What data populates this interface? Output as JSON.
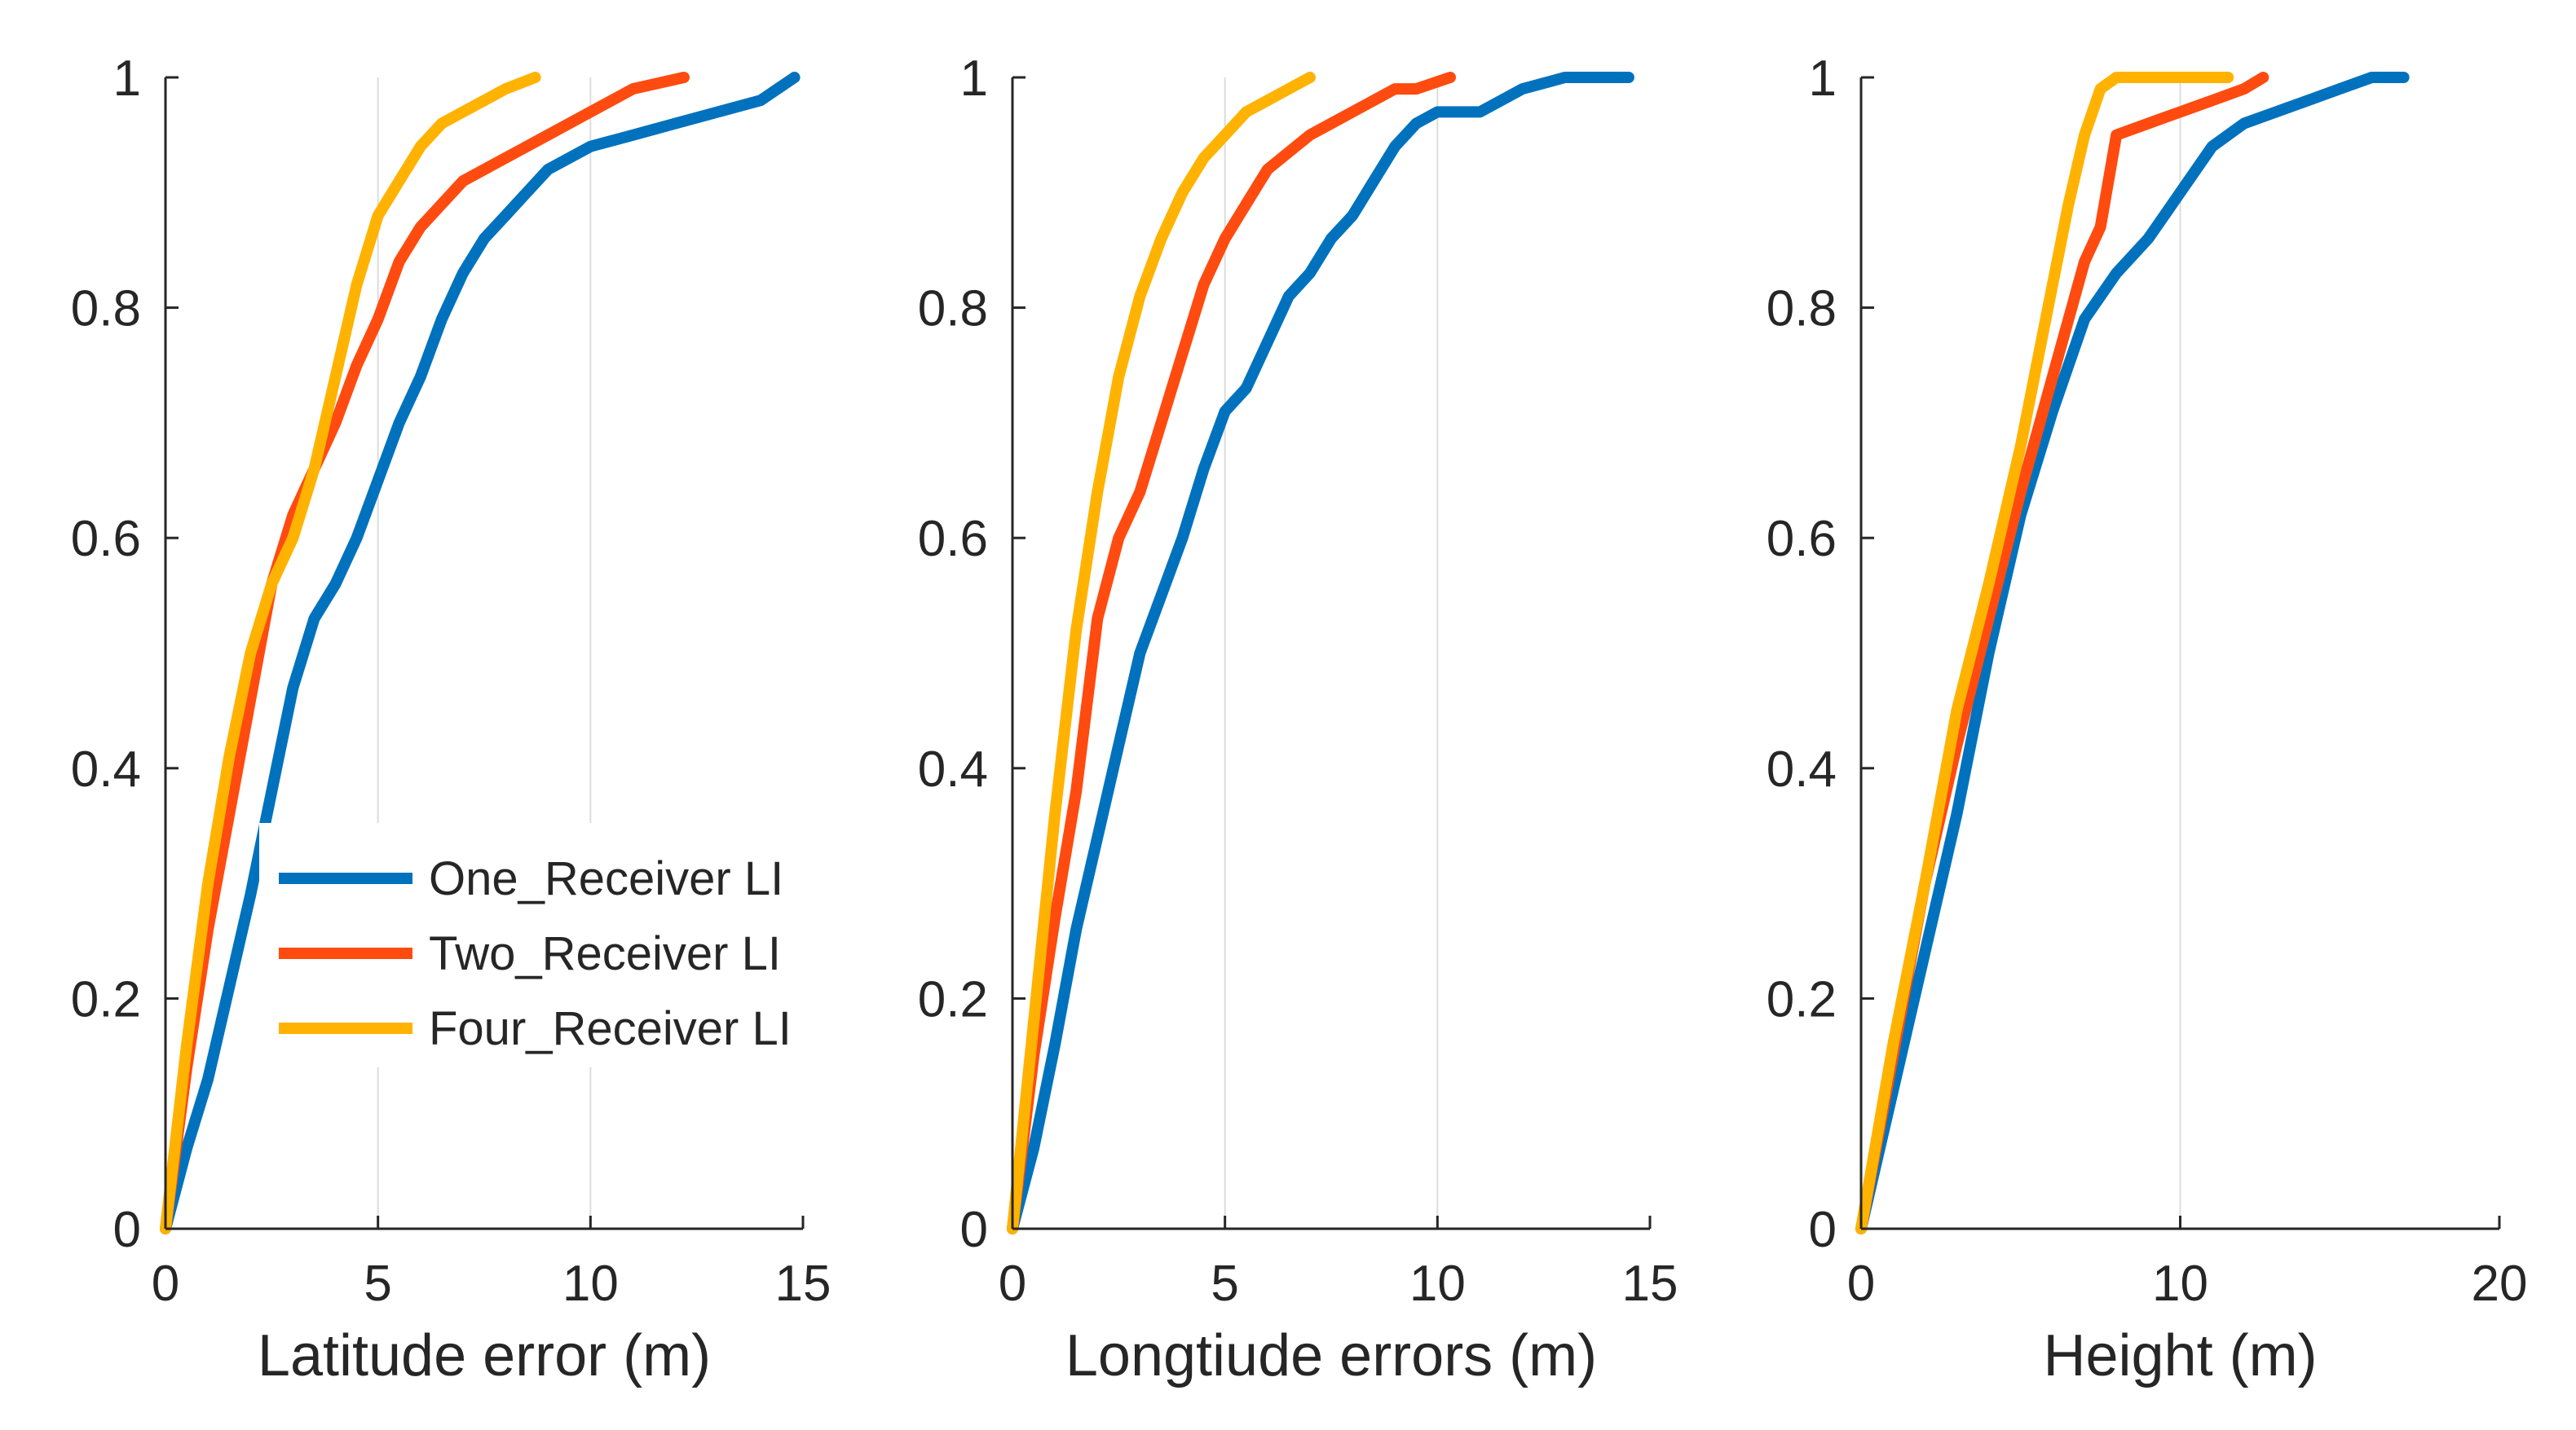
{
  "colors": {
    "one": "#0072BD",
    "two": "#FF4B0F",
    "four": "#FFB300"
  },
  "chart_data": [
    {
      "type": "line",
      "xlabel": "Latitude error (m)",
      "ylabel": "",
      "xlim": [
        0,
        15
      ],
      "ylim": [
        0,
        1
      ],
      "xticks": [
        "0",
        "5",
        "10",
        "15"
      ],
      "yticks": [
        "0",
        "0.2",
        "0.4",
        "0.6",
        "0.8",
        "1"
      ],
      "grid": "vertical",
      "legend": {
        "placement": "lower-right",
        "entries": [
          "One_Receiver LI",
          "Two_Receiver LI",
          "Four_Receiver LI"
        ]
      },
      "series": [
        {
          "name": "One_Receiver LI",
          "x": [
            0,
            0.5,
            1.0,
            1.5,
            2.0,
            2.5,
            3.0,
            3.5,
            4.0,
            4.5,
            5.0,
            5.5,
            6.0,
            6.5,
            7.0,
            7.5,
            8.0,
            8.5,
            9.0,
            10.0,
            11.0,
            12.0,
            13.0,
            14.0,
            14.8
          ],
          "y": [
            0,
            0.07,
            0.13,
            0.21,
            0.29,
            0.38,
            0.47,
            0.53,
            0.56,
            0.6,
            0.65,
            0.7,
            0.74,
            0.79,
            0.83,
            0.86,
            0.88,
            0.9,
            0.92,
            0.94,
            0.95,
            0.96,
            0.97,
            0.98,
            1.0
          ]
        },
        {
          "name": "Two_Receiver LI",
          "x": [
            0,
            0.5,
            1.0,
            1.5,
            2.0,
            2.5,
            3.0,
            3.5,
            4.0,
            4.5,
            5.0,
            5.5,
            6.0,
            7.0,
            8.0,
            9.0,
            10.0,
            11.0,
            12.2
          ],
          "y": [
            0,
            0.14,
            0.26,
            0.36,
            0.46,
            0.56,
            0.62,
            0.66,
            0.7,
            0.75,
            0.79,
            0.84,
            0.87,
            0.91,
            0.93,
            0.95,
            0.97,
            0.99,
            1.0
          ]
        },
        {
          "name": "Four_Receiver LI",
          "x": [
            0,
            0.5,
            1.0,
            1.5,
            2.0,
            2.5,
            3.0,
            3.5,
            4.0,
            4.5,
            5.0,
            5.5,
            6.0,
            6.5,
            7.0,
            7.5,
            8.0,
            8.7
          ],
          "y": [
            0,
            0.16,
            0.3,
            0.41,
            0.5,
            0.56,
            0.6,
            0.66,
            0.74,
            0.82,
            0.88,
            0.91,
            0.94,
            0.96,
            0.97,
            0.98,
            0.99,
            1.0
          ]
        }
      ]
    },
    {
      "type": "line",
      "xlabel": "Longtiude errors (m)",
      "ylabel": "",
      "xlim": [
        0,
        15
      ],
      "ylim": [
        0,
        1
      ],
      "xticks": [
        "0",
        "5",
        "10",
        "15"
      ],
      "yticks": [
        "0",
        "0.2",
        "0.4",
        "0.6",
        "0.8",
        "1"
      ],
      "grid": "vertical",
      "series": [
        {
          "name": "One_Receiver LI",
          "x": [
            0,
            0.5,
            1.0,
            1.5,
            2.0,
            2.5,
            3.0,
            3.5,
            4.0,
            4.5,
            5.0,
            5.5,
            6.0,
            6.5,
            7.0,
            7.5,
            8.0,
            8.5,
            9.0,
            9.5,
            10.0,
            11.0,
            12.0,
            13.0,
            14.5
          ],
          "y": [
            0,
            0.07,
            0.16,
            0.26,
            0.34,
            0.42,
            0.5,
            0.55,
            0.6,
            0.66,
            0.71,
            0.73,
            0.77,
            0.81,
            0.83,
            0.86,
            0.88,
            0.91,
            0.94,
            0.96,
            0.97,
            0.97,
            0.99,
            1.0,
            1.0
          ]
        },
        {
          "name": "Two_Receiver LI",
          "x": [
            0,
            0.5,
            1.0,
            1.5,
            2.0,
            2.5,
            3.0,
            3.5,
            4.0,
            4.5,
            5.0,
            5.5,
            6.0,
            7.0,
            8.0,
            9.0,
            9.5,
            10.3
          ],
          "y": [
            0,
            0.15,
            0.27,
            0.38,
            0.53,
            0.6,
            0.64,
            0.7,
            0.76,
            0.82,
            0.86,
            0.89,
            0.92,
            0.95,
            0.97,
            0.99,
            0.99,
            1.0
          ]
        },
        {
          "name": "Four_Receiver LI",
          "x": [
            0,
            0.5,
            1.0,
            1.5,
            2.0,
            2.5,
            3.0,
            3.5,
            4.0,
            4.5,
            5.0,
            5.5,
            6.0,
            6.5,
            7.0
          ],
          "y": [
            0,
            0.18,
            0.36,
            0.52,
            0.64,
            0.74,
            0.81,
            0.86,
            0.9,
            0.93,
            0.95,
            0.97,
            0.98,
            0.99,
            1.0
          ]
        }
      ]
    },
    {
      "type": "line",
      "xlabel": "Height (m)",
      "ylabel": "",
      "xlim": [
        0,
        20
      ],
      "ylim": [
        0,
        1
      ],
      "xticks": [
        "0",
        "10",
        "20"
      ],
      "yticks": [
        "0",
        "0.2",
        "0.4",
        "0.6",
        "0.8",
        "1"
      ],
      "grid": "vertical",
      "series": [
        {
          "name": "One_Receiver LI",
          "x": [
            0,
            1,
            2,
            3,
            4,
            5,
            6,
            7,
            8,
            9,
            10,
            11,
            12,
            13,
            14,
            15,
            16,
            17
          ],
          "y": [
            0,
            0.12,
            0.24,
            0.36,
            0.5,
            0.62,
            0.71,
            0.79,
            0.83,
            0.86,
            0.9,
            0.94,
            0.96,
            0.97,
            0.98,
            0.99,
            1.0,
            1.0
          ]
        },
        {
          "name": "Two_Receiver LI",
          "x": [
            0,
            1,
            2,
            3,
            4,
            5,
            6,
            7,
            7.5,
            8,
            9,
            10,
            11,
            12,
            12.6
          ],
          "y": [
            0,
            0.15,
            0.3,
            0.42,
            0.53,
            0.64,
            0.74,
            0.84,
            0.87,
            0.95,
            0.96,
            0.97,
            0.98,
            0.99,
            1.0
          ]
        },
        {
          "name": "Four_Receiver LI",
          "x": [
            0,
            1,
            2,
            3,
            4,
            5,
            6,
            6.5,
            7,
            7.5,
            8,
            9,
            10,
            11,
            11.5
          ],
          "y": [
            0,
            0.16,
            0.3,
            0.45,
            0.56,
            0.68,
            0.82,
            0.89,
            0.95,
            0.99,
            1.0,
            1.0,
            1.0,
            1.0,
            1.0
          ]
        }
      ]
    }
  ]
}
